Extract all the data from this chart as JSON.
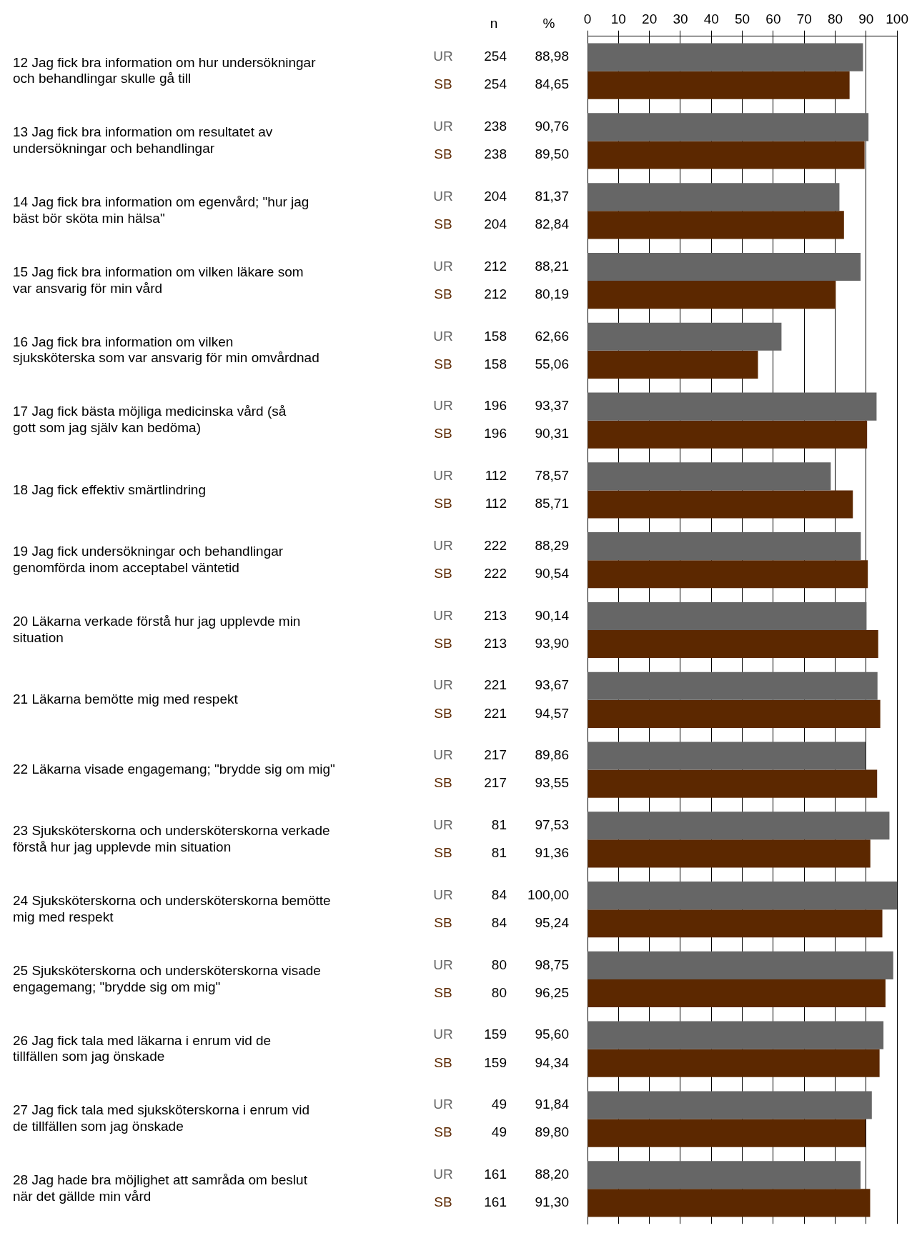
{
  "chart_data": {
    "type": "bar",
    "orientation": "horizontal",
    "legend": false,
    "grid": "x",
    "categories": [
      "12 Jag fick bra information om hur undersökningar och behandlingar skulle gå till",
      "13 Jag fick bra information om resultatet av undersökningar och behandlingar",
      "14 Jag fick bra information om egenvård; \"hur jag bäst bör sköta min hälsa\"",
      "15 Jag fick bra information om vilken läkare som var ansvarig för min vård",
      "16 Jag fick bra information om vilken sjuksköterska som var ansvarig för min omvårdnad",
      "17 Jag fick bästa möjliga medicinska vård (så gott som jag själv kan bedöma)",
      "18 Jag fick effektiv smärtlindring",
      "19 Jag fick undersökningar och behandlingar genomförda inom acceptabel väntetid",
      "20 Läkarna verkade förstå hur jag upplevde min situation",
      "21 Läkarna bemötte mig med respekt",
      "22 Läkarna visade engagemang; \"brydde sig om mig\"",
      "23 Sjuksköterskorna och undersköterskorna verkade förstå hur jag upplevde min situation",
      "24 Sjuksköterskorna och undersköterskorna bemötte mig med respekt",
      "25 Sjuksköterskorna och undersköterskorna visade engagemang; \"brydde sig om mig\"",
      "26 Jag fick tala med läkarna i enrum vid de tillfällen som jag önskade",
      "27 Jag fick tala med sjuksköterskorna i enrum vid de tillfällen som jag önskade",
      "28 Jag hade bra möjlighet att samråda om beslut när det gällde min vård"
    ],
    "x2lim": [
      0,
      100
    ],
    "x2ticks": [
      0,
      10,
      20,
      30,
      40,
      50,
      60,
      70,
      80,
      90,
      100
    ],
    "series": [
      {
        "name": "UR",
        "color": "#666666",
        "axis": "x2",
        "values": [
          88.98,
          90.76,
          81.37,
          88.21,
          62.66,
          93.37,
          78.57,
          88.29,
          90.14,
          93.67,
          89.86,
          97.53,
          100,
          98.75,
          95.6,
          91.84,
          88.2
        ],
        "value_labels": [
          "88,98",
          "90,76",
          "81,37",
          "88,21",
          "62,66",
          "93,37",
          "78,57",
          "88,29",
          "90,14",
          "93,67",
          "89,86",
          "97,53",
          "100,00",
          "98,75",
          "95,60",
          "91,84",
          "88,20"
        ]
      },
      {
        "name": "SB",
        "color": "#5c2800",
        "axis": "x2",
        "values": [
          84.65,
          89.5,
          82.84,
          80.19,
          55.06,
          90.31,
          85.71,
          90.54,
          93.9,
          94.57,
          93.55,
          91.36,
          95.24,
          96.25,
          94.34,
          89.8,
          91.3
        ],
        "value_labels": [
          "84,65",
          "89,50",
          "82,84",
          "80,19",
          "55,06",
          "90,31",
          "85,71",
          "90,54",
          "93,90",
          "94,57",
          "93,55",
          "91,36",
          "95,24",
          "96,25",
          "94,34",
          "89,80",
          "91,30"
        ]
      }
    ],
    "annotations": [
      "n",
      "%",
      "254",
      "254",
      "238",
      "238",
      "204",
      "204",
      "212",
      "212",
      "158",
      "158",
      "196",
      "196",
      "112",
      "112",
      "222",
      "222",
      "213",
      "213",
      "221",
      "221",
      "217",
      "217",
      "81",
      "81",
      "84",
      "84",
      "80",
      "80",
      "159",
      "159",
      "49",
      "49",
      "161",
      "161"
    ]
  }
}
